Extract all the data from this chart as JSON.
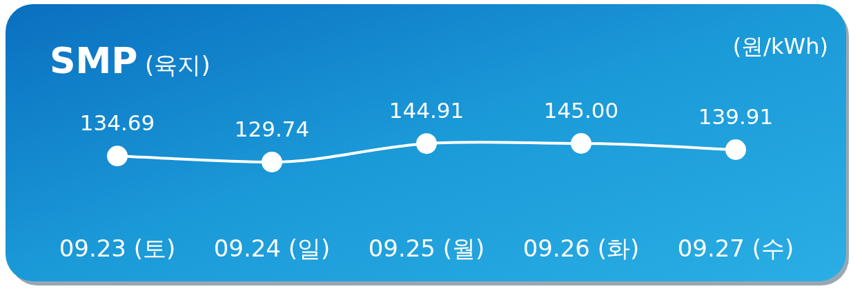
{
  "chart_data": {
    "type": "line",
    "title": "**SMP** (육지)",
    "ylabel": "(원/kWh)",
    "categories": [
      "09.23 (토)",
      "09.24 (일)",
      "09.25 (월)",
      "09.26 (화)",
      "09.27 (수)"
    ],
    "values": [
      134.69,
      129.74,
      144.91,
      145.0,
      139.91
    ],
    "value_labels": [
      "134.69",
      "129.74",
      "144.91",
      "145.00",
      "139.91"
    ],
    "color": "#ffffff",
    "marker": "circle",
    "line_style": "solid"
  }
}
